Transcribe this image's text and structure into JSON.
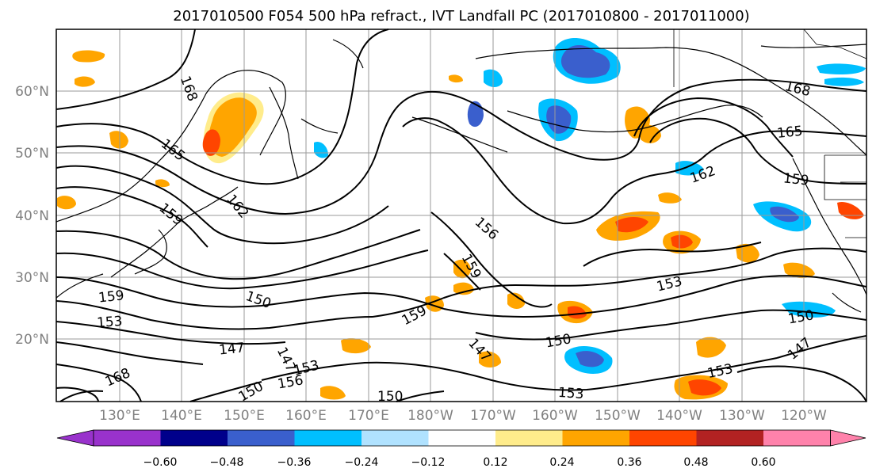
{
  "title": "2017010500 F054 500 hPa refract., IVT Landfall PC (2017010800 - 2017011000)",
  "map": {
    "lat_labels": [
      "60°N",
      "50°N",
      "40°N",
      "30°N",
      "20°N"
    ],
    "lon_labels": [
      "130°E",
      "140°E",
      "150°E",
      "160°E",
      "170°E",
      "180°W",
      "170°W",
      "160°W",
      "150°W",
      "140°W",
      "130°W",
      "120°W"
    ],
    "contour_labels": [
      "168",
      "168",
      "165",
      "165",
      "162",
      "162",
      "159",
      "159",
      "159",
      "159",
      "159",
      "156",
      "156",
      "153",
      "153",
      "153",
      "153",
      "153",
      "150",
      "150",
      "150",
      "150",
      "150",
      "147",
      "147",
      "147",
      "147",
      "168"
    ]
  },
  "colorbar": {
    "ticks": [
      "−0.60",
      "−0.48",
      "−0.36",
      "−0.24",
      "−0.12",
      "0.12",
      "0.24",
      "0.36",
      "0.48",
      "0.60"
    ],
    "colors": [
      "#9932cc",
      "#00008b",
      "#3a5fcd",
      "#00bfff",
      "#b0e2ff",
      "#ffffff",
      "#ffec8b",
      "#ffa500",
      "#ff4500",
      "#b22222",
      "#ff82ab"
    ],
    "under_color": "#9932cc",
    "over_color": "#ff82ab"
  }
}
